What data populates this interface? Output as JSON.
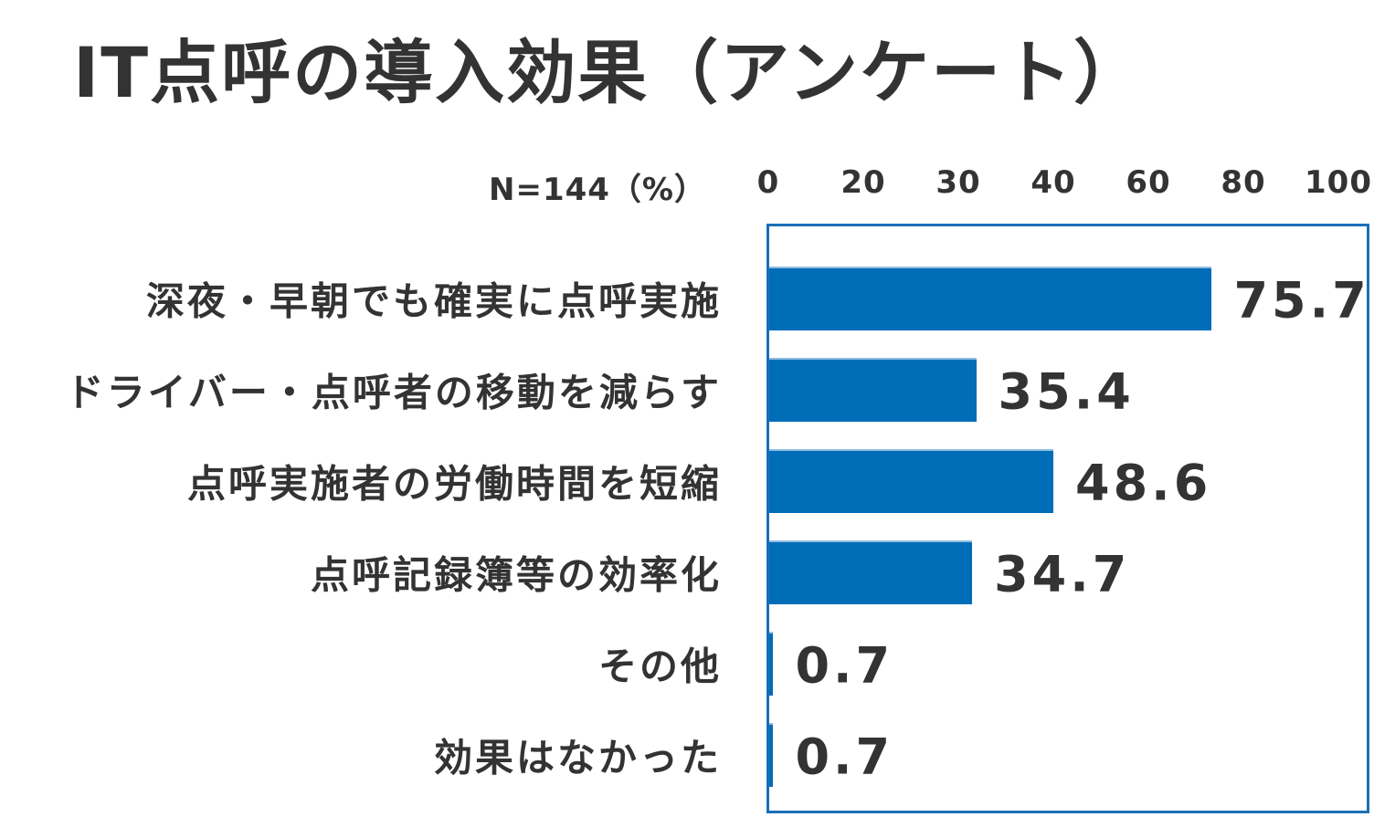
{
  "chart_data": {
    "type": "bar",
    "orientation": "horizontal",
    "title": "IT点呼の導入効果（アンケート）",
    "axis_note": "N=144（%）",
    "xticks": [
      "0",
      "20",
      "30",
      "40",
      "60",
      "80",
      "100"
    ],
    "xlim": [
      0,
      100
    ],
    "categories": [
      "深夜・早朝でも確実に点呼実施",
      "ドライバー・点呼者の移動を減らす",
      "点呼実施者の労働時間を短縮",
      "点呼記録簿等の効率化",
      "その他",
      "効果はなかった"
    ],
    "values": [
      75.7,
      35.4,
      48.6,
      34.7,
      0.7,
      0.7
    ],
    "value_labels": [
      "75.7",
      "35.4",
      "48.6",
      "34.7",
      "0.7",
      "0.7"
    ],
    "grid": false,
    "bar_color": "#006db8",
    "frame_color": "#1a6fb8"
  }
}
